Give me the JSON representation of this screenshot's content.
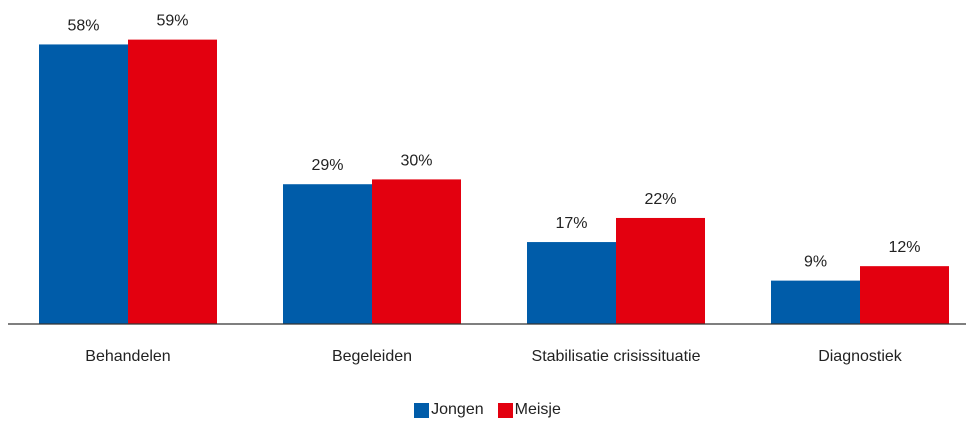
{
  "chart_data": {
    "type": "bar",
    "categories": [
      "Behandelen",
      "Begeleiden",
      "Stabilisatie crisissituatie",
      "Diagnostiek"
    ],
    "series": [
      {
        "name": "Jongen",
        "values": [
          58,
          29,
          17,
          9
        ],
        "color": "#005ca9"
      },
      {
        "name": "Meisje",
        "values": [
          59,
          30,
          22,
          12
        ],
        "color": "#e3000f"
      }
    ],
    "value_suffix": "%",
    "title": "",
    "xlabel": "",
    "ylabel": "",
    "ylim": [
      0,
      60
    ],
    "grid": false,
    "legend_position": "bottom"
  }
}
